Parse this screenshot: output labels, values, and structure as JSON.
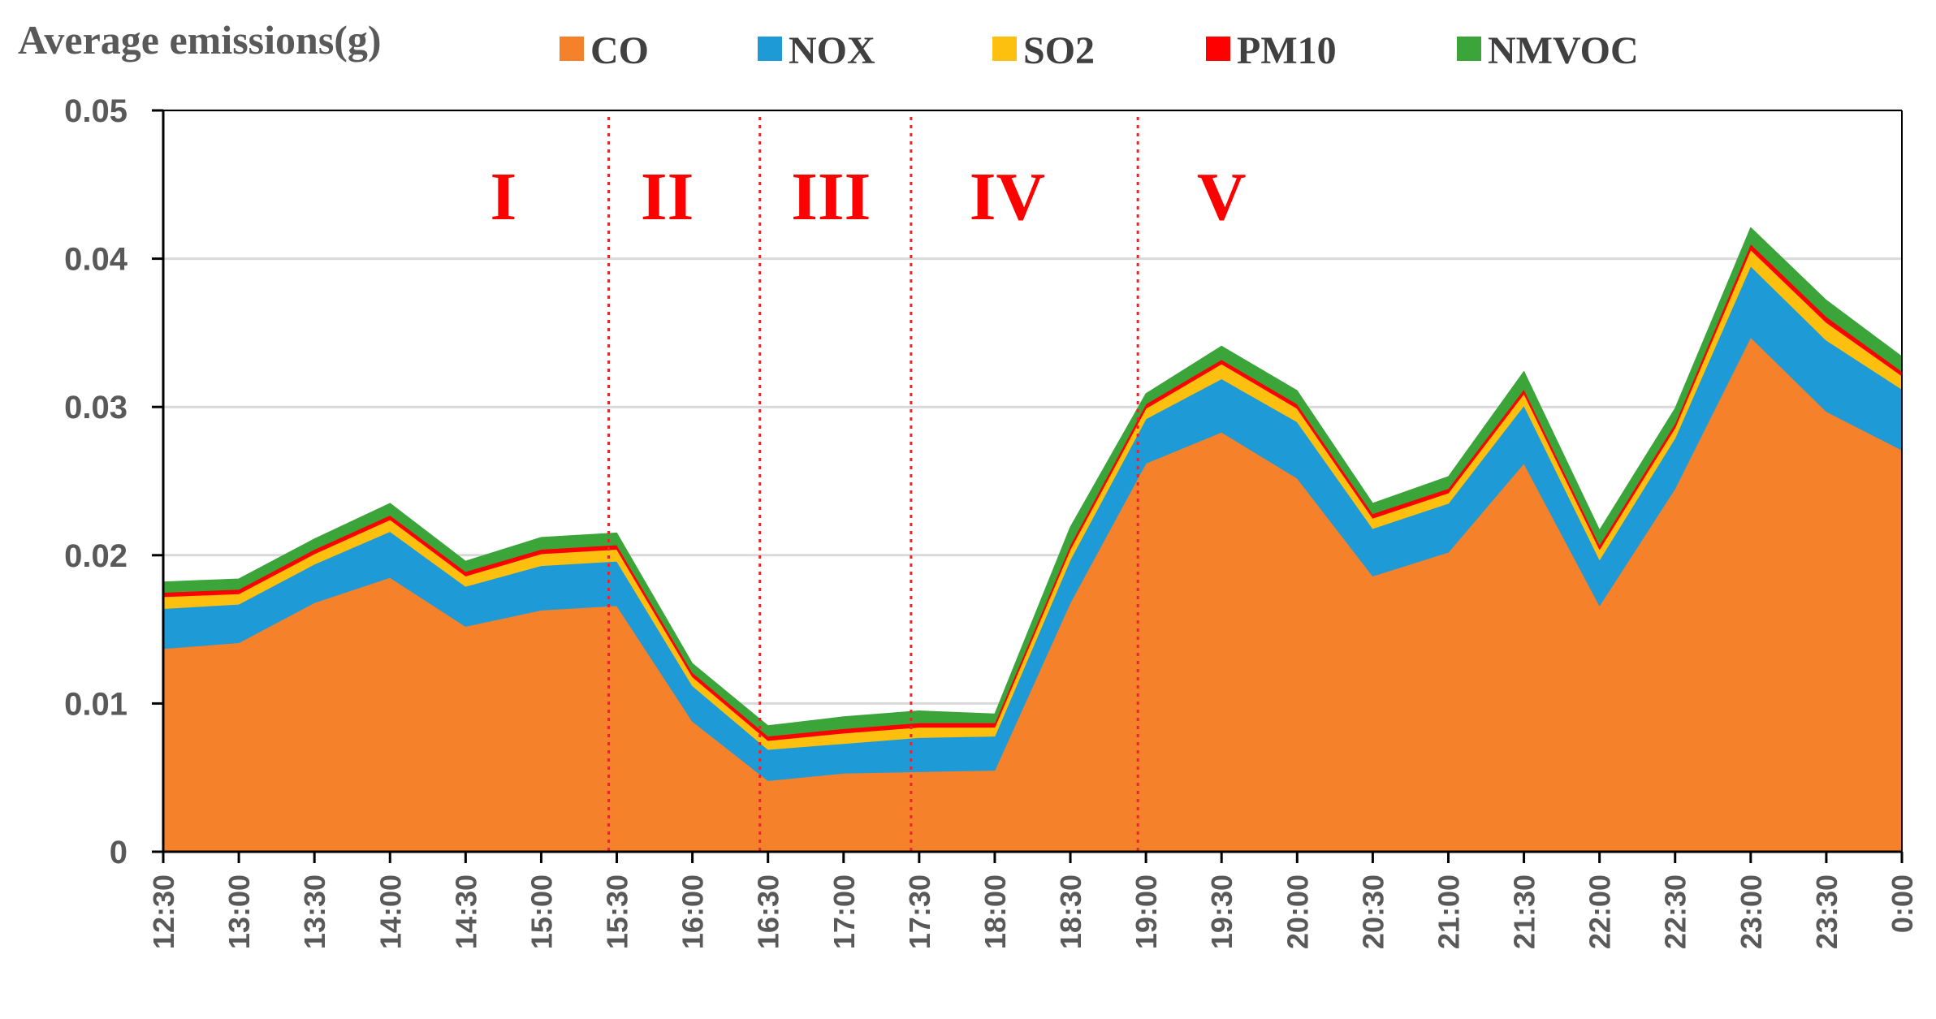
{
  "chart_data": {
    "type": "area",
    "stacked": true,
    "title": "Average emissions(g)",
    "xlabel": "",
    "ylabel": "Average emissions(g)",
    "ylim": [
      0,
      0.05
    ],
    "yticks": [
      "0",
      "0.01",
      "0.02",
      "0.03",
      "0.04",
      "0.05"
    ],
    "grid": true,
    "legend_position": "top",
    "categories": [
      "12:30",
      "13:00",
      "13:30",
      "14:00",
      "14:30",
      "15:00",
      "15:30",
      "16:00",
      "16:30",
      "17:00",
      "17:30",
      "18:00",
      "18:30",
      "19:00",
      "19:30",
      "20:00",
      "20:30",
      "21:00",
      "21:30",
      "22:00",
      "22:30",
      "23:00",
      "23:30",
      "0:00"
    ],
    "series": [
      {
        "name": "CO",
        "color": "#f5822a",
        "values": [
          0.0137,
          0.0141,
          0.0168,
          0.0185,
          0.0152,
          0.0163,
          0.0166,
          0.0088,
          0.0048,
          0.0053,
          0.0054,
          0.0055,
          0.0168,
          0.0262,
          0.0283,
          0.0252,
          0.0186,
          0.0202,
          0.0262,
          0.0166,
          0.0245,
          0.0347,
          0.0297,
          0.0271
        ]
      },
      {
        "name": "NOX",
        "color": "#1e9ad6",
        "values": [
          0.0027,
          0.0026,
          0.0026,
          0.0031,
          0.0027,
          0.003,
          0.003,
          0.0024,
          0.0021,
          0.002,
          0.0023,
          0.0023,
          0.0029,
          0.003,
          0.0036,
          0.0038,
          0.0032,
          0.0033,
          0.0039,
          0.0031,
          0.0034,
          0.0048,
          0.0048,
          0.0041
        ]
      },
      {
        "name": "SO2",
        "color": "#fdc00f",
        "values": [
          0.0008,
          0.0007,
          0.0007,
          0.0008,
          0.0007,
          0.0008,
          0.0008,
          0.0006,
          0.0006,
          0.0007,
          0.0007,
          0.0006,
          0.0007,
          0.0007,
          0.001,
          0.0009,
          0.0007,
          0.0007,
          0.0008,
          0.0007,
          0.0007,
          0.0011,
          0.0012,
          0.0009
        ]
      },
      {
        "name": "PM10",
        "color": "#ff0000",
        "values": [
          0.0003,
          0.0003,
          0.0003,
          0.0003,
          0.0003,
          0.0003,
          0.0003,
          0.0003,
          0.0003,
          0.0003,
          0.0003,
          0.0003,
          0.0003,
          0.0003,
          0.0003,
          0.0003,
          0.0003,
          0.0003,
          0.0003,
          0.0003,
          0.0003,
          0.0004,
          0.0004,
          0.0003
        ]
      },
      {
        "name": "NMVOC",
        "color": "#3ba53a",
        "values": [
          0.0007,
          0.0007,
          0.0007,
          0.0008,
          0.0007,
          0.0008,
          0.0008,
          0.0006,
          0.0007,
          0.0008,
          0.0008,
          0.0006,
          0.0012,
          0.0007,
          0.0009,
          0.0009,
          0.0007,
          0.0008,
          0.0012,
          0.001,
          0.001,
          0.0011,
          0.0011,
          0.001
        ]
      }
    ],
    "phase_dividers": [
      "15:30",
      "16:30",
      "17:30",
      "19:00"
    ],
    "phase_dividers_color": "#e8262c",
    "phases": [
      {
        "label": "I",
        "center": "14:45"
      },
      {
        "label": "II",
        "center": "15:50"
      },
      {
        "label": "III",
        "center": "16:55"
      },
      {
        "label": "IV",
        "center": "18:05"
      },
      {
        "label": "V",
        "center": "19:30"
      }
    ]
  }
}
